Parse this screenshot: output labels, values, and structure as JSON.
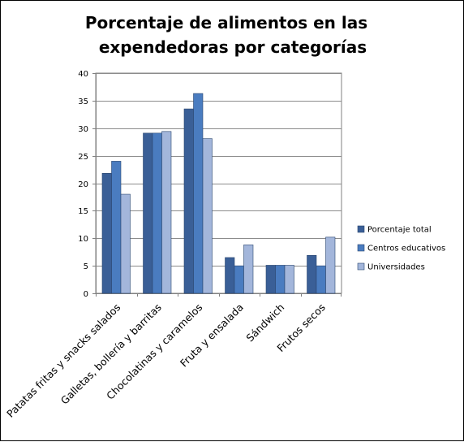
{
  "chart_data": {
    "type": "bar",
    "title_lines": [
      "Porcentaje de alimentos en las",
      "expendedoras por categorías"
    ],
    "categories": [
      "Patatas fritas y snacks salados",
      "Galletas, bollería y barritas",
      "Chocolatinas y caramelos",
      "Fruta y ensalada",
      "Sándwich",
      "Frutos secos"
    ],
    "series": [
      {
        "name": "Porcentaje total",
        "values": [
          21.8,
          29.1,
          33.5,
          6.5,
          5.1,
          6.9
        ],
        "color": "#3a5f97"
      },
      {
        "name": "Centros educativos",
        "values": [
          24.0,
          29.1,
          36.3,
          5.0,
          5.1,
          5.0
        ],
        "color": "#4a7cc0"
      },
      {
        "name": "Universidades",
        "values": [
          18.0,
          29.4,
          28.1,
          8.8,
          5.1,
          10.2
        ],
        "color": "#a3b6db"
      }
    ],
    "ylim": [
      0,
      40
    ],
    "yticks": [
      "0",
      "5",
      "10",
      "15",
      "20",
      "25",
      "30",
      "35",
      "40"
    ],
    "grid": true,
    "legend_position": "right",
    "plot_background": "#ffffff"
  }
}
